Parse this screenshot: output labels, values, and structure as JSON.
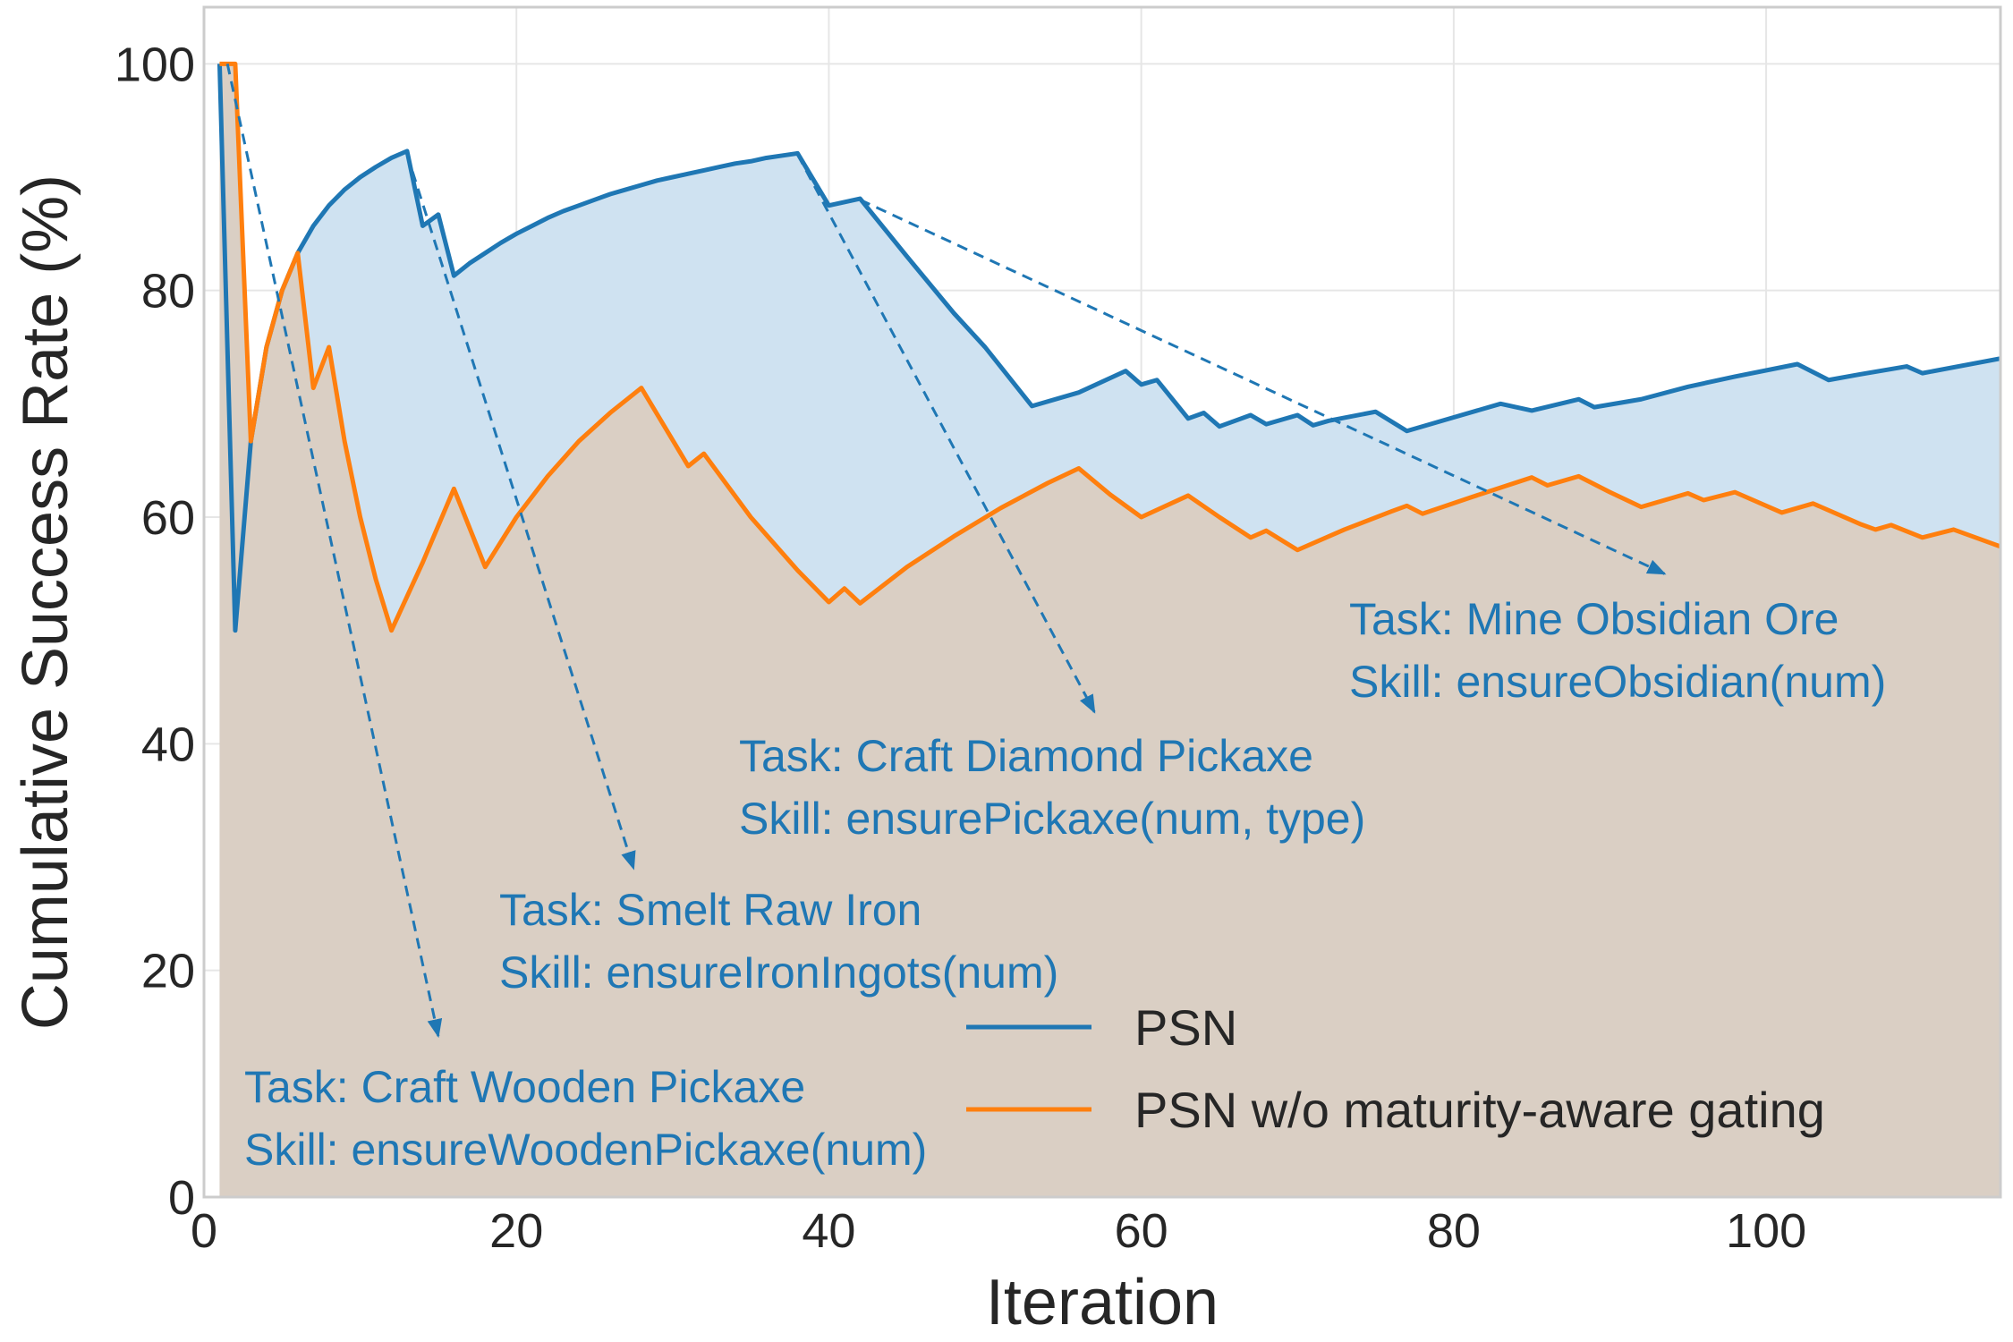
{
  "chart_data": {
    "type": "line",
    "xlabel": "Iteration",
    "ylabel": "Cumulative Success Rate (%)",
    "xlim": [
      0,
      115
    ],
    "ylim": [
      0,
      105
    ],
    "xticks": [
      0,
      20,
      40,
      60,
      80,
      100
    ],
    "yticks": [
      0,
      20,
      40,
      60,
      80,
      100
    ],
    "grid": true,
    "legend_position": "lower-right",
    "series": [
      {
        "name": "PSN",
        "color": "#1f77b4",
        "fill": "#cfe2f1",
        "points": [
          [
            1,
            100
          ],
          [
            2,
            50
          ],
          [
            3,
            66.7
          ],
          [
            4,
            75
          ],
          [
            5,
            80
          ],
          [
            6,
            83.3
          ],
          [
            7,
            85.7
          ],
          [
            8,
            87.5
          ],
          [
            9,
            88.9
          ],
          [
            10,
            90
          ],
          [
            11,
            90.9
          ],
          [
            12,
            91.7
          ],
          [
            13,
            92.3
          ],
          [
            14,
            85.7
          ],
          [
            15,
            86.7
          ],
          [
            16,
            81.3
          ],
          [
            17,
            82.4
          ],
          [
            18,
            83.3
          ],
          [
            19,
            84.2
          ],
          [
            20,
            85
          ],
          [
            21,
            85.7
          ],
          [
            22,
            86.4
          ],
          [
            23,
            87
          ],
          [
            24,
            87.5
          ],
          [
            25,
            88
          ],
          [
            26,
            88.5
          ],
          [
            27,
            88.9
          ],
          [
            28,
            89.3
          ],
          [
            29,
            89.7
          ],
          [
            30,
            90
          ],
          [
            31,
            90.3
          ],
          [
            32,
            90.6
          ],
          [
            33,
            90.9
          ],
          [
            34,
            91.2
          ],
          [
            35,
            91.4
          ],
          [
            36,
            91.7
          ],
          [
            37,
            91.9
          ],
          [
            38,
            92.1
          ],
          [
            40,
            87.5
          ],
          [
            42,
            88.1
          ],
          [
            45,
            83
          ],
          [
            48,
            78
          ],
          [
            50,
            75
          ],
          [
            53,
            69.8
          ],
          [
            56,
            71
          ],
          [
            59,
            72.9
          ],
          [
            60,
            71.7
          ],
          [
            61,
            72.1
          ],
          [
            63,
            68.7
          ],
          [
            64,
            69.2
          ],
          [
            65,
            68
          ],
          [
            67,
            69
          ],
          [
            68,
            68.2
          ],
          [
            70,
            69
          ],
          [
            71,
            68.1
          ],
          [
            72,
            68.5
          ],
          [
            75,
            69.3
          ],
          [
            77,
            67.6
          ],
          [
            80,
            68.8
          ],
          [
            83,
            70
          ],
          [
            85,
            69.4
          ],
          [
            88,
            70.4
          ],
          [
            89,
            69.7
          ],
          [
            92,
            70.4
          ],
          [
            95,
            71.5
          ],
          [
            98,
            72.4
          ],
          [
            102,
            73.5
          ],
          [
            104,
            72.1
          ],
          [
            106,
            72.6
          ],
          [
            109,
            73.3
          ],
          [
            110,
            72.7
          ],
          [
            115,
            74
          ]
        ]
      },
      {
        "name": "PSN w/o maturity-aware gating",
        "color": "#ff7f0e",
        "fill": "#dacfc4",
        "points": [
          [
            1,
            100
          ],
          [
            2,
            100
          ],
          [
            3,
            66.7
          ],
          [
            4,
            75
          ],
          [
            5,
            80
          ],
          [
            6,
            83.3
          ],
          [
            7,
            71.4
          ],
          [
            8,
            75
          ],
          [
            9,
            66.7
          ],
          [
            10,
            60
          ],
          [
            11,
            54.5
          ],
          [
            12,
            50
          ],
          [
            14,
            56
          ],
          [
            16,
            62.5
          ],
          [
            18,
            55.6
          ],
          [
            20,
            60
          ],
          [
            22,
            63.6
          ],
          [
            24,
            66.7
          ],
          [
            26,
            69.2
          ],
          [
            28,
            71.4
          ],
          [
            31,
            64.5
          ],
          [
            32,
            65.6
          ],
          [
            35,
            60
          ],
          [
            38,
            55.3
          ],
          [
            40,
            52.5
          ],
          [
            41,
            53.7
          ],
          [
            42,
            52.4
          ],
          [
            45,
            55.6
          ],
          [
            48,
            58.3
          ],
          [
            51,
            60.8
          ],
          [
            54,
            63
          ],
          [
            56,
            64.3
          ],
          [
            58,
            62
          ],
          [
            60,
            60
          ],
          [
            63,
            61.9
          ],
          [
            65,
            60
          ],
          [
            67,
            58.2
          ],
          [
            68,
            58.8
          ],
          [
            70,
            57.1
          ],
          [
            73,
            58.9
          ],
          [
            76,
            60.5
          ],
          [
            77,
            61
          ],
          [
            78,
            60.3
          ],
          [
            81,
            61.7
          ],
          [
            85,
            63.5
          ],
          [
            86,
            62.8
          ],
          [
            88,
            63.6
          ],
          [
            90,
            62.2
          ],
          [
            92,
            60.9
          ],
          [
            94,
            61.7
          ],
          [
            95,
            62.1
          ],
          [
            96,
            61.5
          ],
          [
            98,
            62.2
          ],
          [
            101,
            60.4
          ],
          [
            103,
            61.2
          ],
          [
            106,
            59.4
          ],
          [
            107,
            58.9
          ],
          [
            108,
            59.3
          ],
          [
            110,
            58.2
          ],
          [
            112,
            58.9
          ],
          [
            115,
            57.4
          ]
        ]
      }
    ],
    "annotations": [
      {
        "task": "Task: Craft Wooden Pickaxe",
        "skill": "Skill: ensureWoodenPickaxe(num)",
        "arrow_from": [
          1.5,
          100
        ],
        "arrow_to": [
          15,
          14.2
        ]
      },
      {
        "task": "Task: Smelt Raw Iron",
        "skill": "Skill: ensureIronIngots(num)",
        "arrow_from": [
          13,
          92
        ],
        "arrow_to": [
          27.5,
          29
        ]
      },
      {
        "task": "Task: Craft Diamond Pickaxe",
        "skill": "Skill:  ensurePickaxe(num, type)",
        "arrow_from": [
          38,
          92
        ],
        "arrow_to": [
          57,
          42.8
        ]
      },
      {
        "task": "Task: Mine Obsidian Ore",
        "skill": "Skill:  ensureObsidian(num)",
        "arrow_from": [
          42,
          88
        ],
        "arrow_to": [
          93.5,
          55
        ]
      }
    ]
  }
}
